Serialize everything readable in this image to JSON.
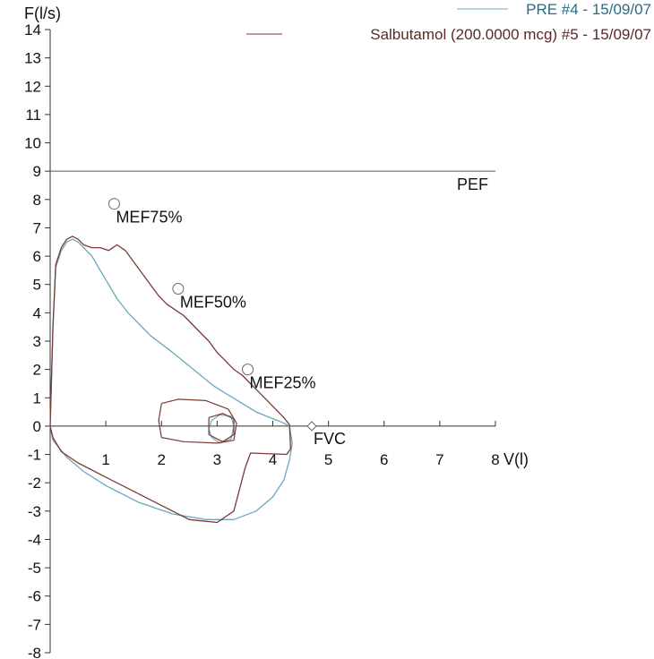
{
  "chart_data": {
    "type": "line",
    "title": "",
    "xlabel": "V(l)",
    "ylabel": "F(l/s)",
    "xlim": [
      0,
      8
    ],
    "ylim": [
      -8,
      14
    ],
    "x_ticks": [
      1,
      2,
      3,
      4,
      5,
      6,
      7,
      8
    ],
    "x_tick_labels": [
      "1",
      "2",
      "3",
      "4",
      "5",
      "6",
      "7",
      "8"
    ],
    "y_ticks": [
      14,
      13,
      12,
      11,
      10,
      9,
      8,
      7,
      6,
      5,
      4,
      3,
      2,
      1,
      0,
      -1,
      -2,
      -3,
      -4,
      -5,
      -6,
      -7,
      -8
    ],
    "y_tick_labels": [
      "14",
      "13",
      "12",
      "11",
      "10",
      "9",
      "8",
      "7",
      "6",
      "5",
      "4",
      "3",
      "2",
      "1",
      "0",
      "-1",
      "-2",
      "-3",
      "-4",
      "-5",
      "-6",
      "-7",
      "-8"
    ],
    "grid": false,
    "legend_position": "top-right",
    "colors": {
      "pre": "#6aa7bd",
      "post": "#7a3a36",
      "reference": "#555555",
      "axis": "#333333"
    },
    "series": [
      {
        "name": "PRE #4 - 15/09/07",
        "color": "#6aa7bd",
        "points": [
          [
            0,
            0
          ],
          [
            0.05,
            3.5
          ],
          [
            0.1,
            5.6
          ],
          [
            0.2,
            6.2
          ],
          [
            0.3,
            6.5
          ],
          [
            0.4,
            6.6
          ],
          [
            0.5,
            6.5
          ],
          [
            0.6,
            6.3
          ],
          [
            0.75,
            6.0
          ],
          [
            0.9,
            5.5
          ],
          [
            1.05,
            5.0
          ],
          [
            1.2,
            4.5
          ],
          [
            1.4,
            4.0
          ],
          [
            1.6,
            3.6
          ],
          [
            1.8,
            3.2
          ],
          [
            2.0,
            2.9
          ],
          [
            2.2,
            2.6
          ],
          [
            2.45,
            2.2
          ],
          [
            2.7,
            1.8
          ],
          [
            2.95,
            1.4
          ],
          [
            3.2,
            1.1
          ],
          [
            3.45,
            0.8
          ],
          [
            3.7,
            0.5
          ],
          [
            3.95,
            0.3
          ],
          [
            4.15,
            0.15
          ],
          [
            4.3,
            0.0
          ],
          [
            4.35,
            -0.6
          ],
          [
            4.3,
            -1.2
          ],
          [
            4.2,
            -1.9
          ],
          [
            4.0,
            -2.5
          ],
          [
            3.7,
            -3.0
          ],
          [
            3.3,
            -3.3
          ],
          [
            2.8,
            -3.3
          ],
          [
            2.2,
            -3.1
          ],
          [
            1.6,
            -2.7
          ],
          [
            1.0,
            -2.1
          ],
          [
            0.6,
            -1.6
          ],
          [
            0.3,
            -1.1
          ],
          [
            0.05,
            -0.5
          ],
          [
            0,
            0
          ]
        ]
      },
      {
        "name": "Salbutamol (200.0000 mcg) #5 - 15/09/07",
        "color": "#7a3a36",
        "points": [
          [
            0,
            0
          ],
          [
            0.05,
            3.5
          ],
          [
            0.1,
            5.7
          ],
          [
            0.2,
            6.3
          ],
          [
            0.3,
            6.6
          ],
          [
            0.4,
            6.7
          ],
          [
            0.5,
            6.6
          ],
          [
            0.6,
            6.4
          ],
          [
            0.75,
            6.3
          ],
          [
            0.9,
            6.3
          ],
          [
            1.05,
            6.2
          ],
          [
            1.2,
            6.4
          ],
          [
            1.35,
            6.2
          ],
          [
            1.5,
            5.8
          ],
          [
            1.65,
            5.4
          ],
          [
            1.8,
            5.0
          ],
          [
            1.95,
            4.6
          ],
          [
            2.1,
            4.3
          ],
          [
            2.25,
            4.1
          ],
          [
            2.4,
            3.9
          ],
          [
            2.55,
            3.6
          ],
          [
            2.7,
            3.3
          ],
          [
            2.85,
            3.0
          ],
          [
            3.0,
            2.6
          ],
          [
            3.15,
            2.3
          ],
          [
            3.3,
            2.0
          ],
          [
            3.45,
            1.8
          ],
          [
            3.6,
            1.5
          ],
          [
            3.75,
            1.2
          ],
          [
            3.9,
            0.9
          ],
          [
            4.05,
            0.6
          ],
          [
            4.2,
            0.3
          ],
          [
            4.3,
            0.05
          ],
          [
            4.32,
            -0.8
          ],
          [
            4.25,
            -1.0
          ],
          [
            3.6,
            -0.95
          ],
          [
            3.5,
            -1.5
          ],
          [
            3.3,
            -3.0
          ],
          [
            3.0,
            -3.4
          ],
          [
            2.5,
            -3.3
          ],
          [
            1.8,
            -2.6
          ],
          [
            1.0,
            -1.8
          ],
          [
            0.5,
            -1.3
          ],
          [
            0.2,
            -0.9
          ],
          [
            0.05,
            -0.4
          ],
          [
            0,
            0
          ]
        ]
      }
    ],
    "small_loops": [
      {
        "series": "PRE #4 - 15/09/07",
        "color": "#6aa7bd",
        "points": [
          [
            2.9,
            0.2
          ],
          [
            3.05,
            0.4
          ],
          [
            3.25,
            0.35
          ],
          [
            3.3,
            0.0
          ],
          [
            3.25,
            -0.45
          ],
          [
            3.05,
            -0.6
          ],
          [
            2.9,
            -0.4
          ],
          [
            2.85,
            -0.1
          ],
          [
            2.9,
            0.2
          ]
        ]
      },
      {
        "series": "Salbutamol (200.0000 mcg) #5 - 15/09/07",
        "color": "#7a3a36",
        "points": [
          [
            2.0,
            0.8
          ],
          [
            2.3,
            0.95
          ],
          [
            2.8,
            0.9
          ],
          [
            3.2,
            0.6
          ],
          [
            3.35,
            0.1
          ],
          [
            3.3,
            -0.5
          ],
          [
            3.0,
            -0.6
          ],
          [
            2.4,
            -0.55
          ],
          [
            2.0,
            -0.4
          ],
          [
            1.95,
            0.2
          ],
          [
            2.0,
            0.8
          ]
        ]
      },
      {
        "series": "Salbutamol (200.0000 mcg) #5 - 15/09/07",
        "color": "#7a3a36",
        "points": [
          [
            2.85,
            0.3
          ],
          [
            3.1,
            0.45
          ],
          [
            3.3,
            0.25
          ],
          [
            3.3,
            -0.3
          ],
          [
            3.1,
            -0.55
          ],
          [
            2.85,
            -0.3
          ],
          [
            2.85,
            0.3
          ]
        ]
      }
    ],
    "reference_line": {
      "label": "PEF",
      "y": 9.0
    },
    "markers": [
      {
        "label": "MEF75%",
        "x": 1.15,
        "y": 7.85,
        "shape": "circle"
      },
      {
        "label": "MEF50%",
        "x": 2.3,
        "y": 4.85,
        "shape": "circle"
      },
      {
        "label": "MEF25%",
        "x": 3.55,
        "y": 2.0,
        "shape": "circle"
      },
      {
        "label": "FVC",
        "x": 4.7,
        "y": 0.0,
        "shape": "diamond"
      }
    ]
  }
}
